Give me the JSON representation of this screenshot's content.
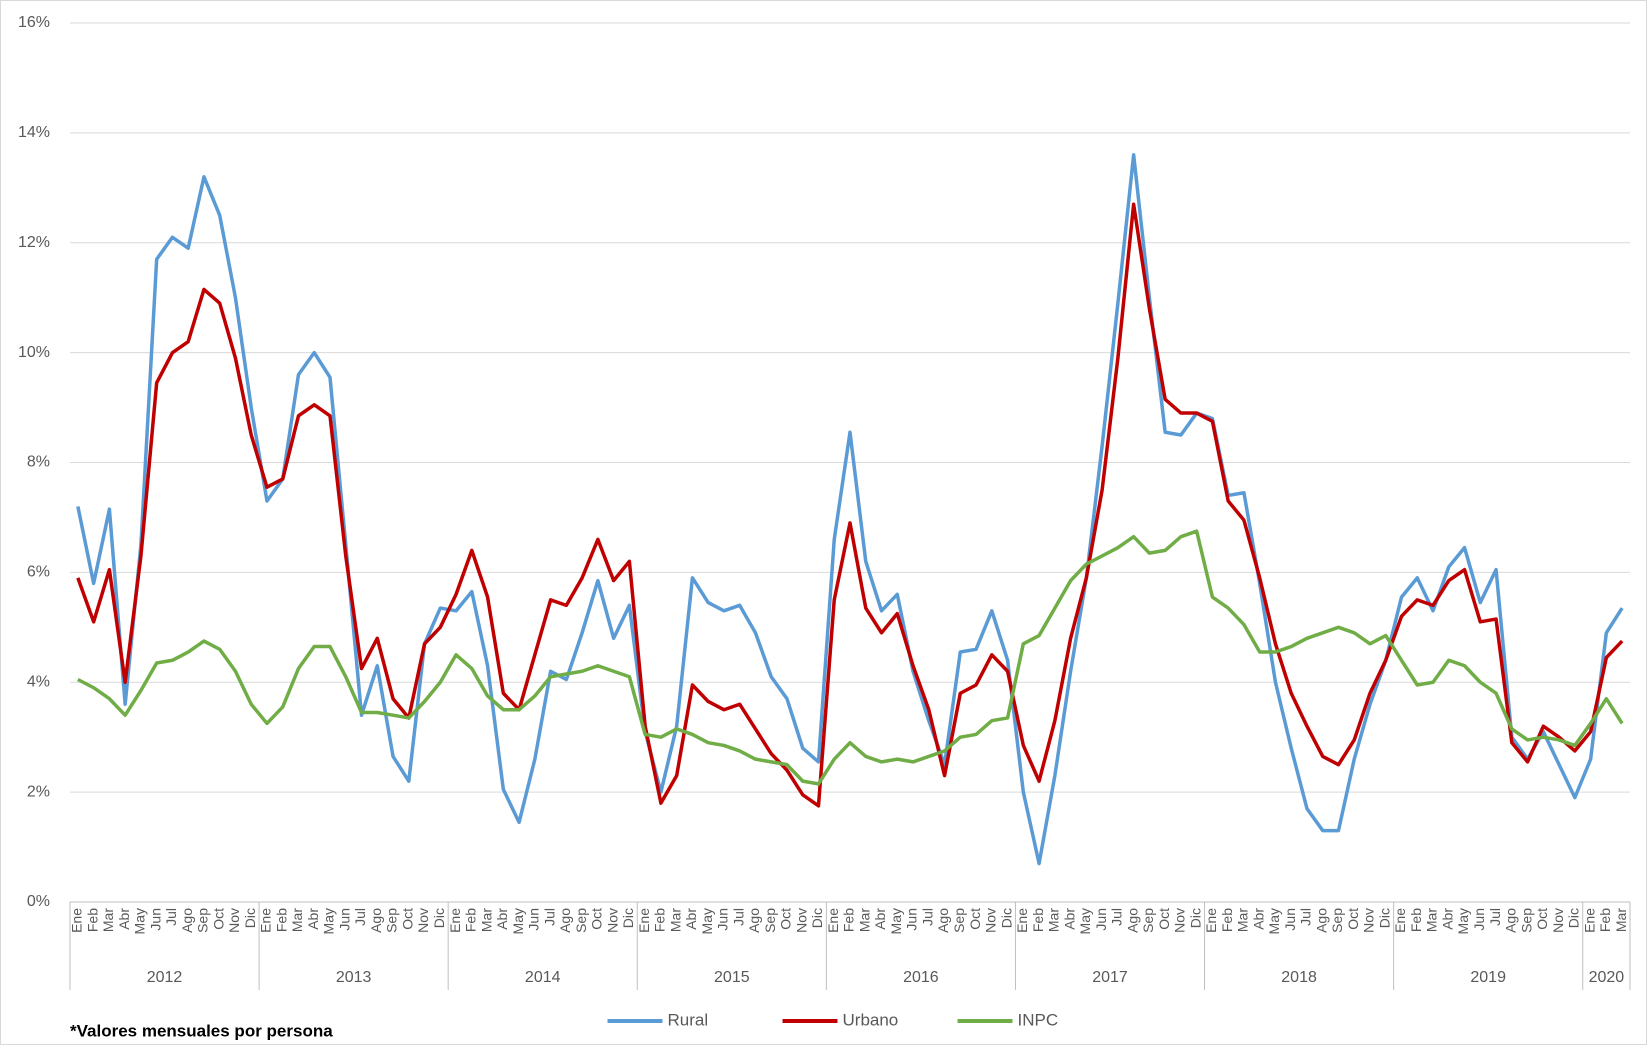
{
  "chart_data": {
    "type": "line",
    "categories": [
      "Ene",
      "Feb",
      "Mar",
      "Abr",
      "May",
      "Jun",
      "Jul",
      "Ago",
      "Sep",
      "Oct",
      "Nov",
      "Dic",
      "Ene",
      "Feb",
      "Mar",
      "Abr",
      "May",
      "Jun",
      "Jul",
      "Ago",
      "Sep",
      "Oct",
      "Nov",
      "Dic",
      "Ene",
      "Feb",
      "Mar",
      "Abr",
      "May",
      "Jun",
      "Jul",
      "Ago",
      "Sep",
      "Oct",
      "Nov",
      "Dic",
      "Ene",
      "Feb",
      "Mar",
      "Abr",
      "May",
      "Jun",
      "Jul",
      "Ago",
      "Sep",
      "Oct",
      "Nov",
      "Dic",
      "Ene",
      "Feb",
      "Mar",
      "Abr",
      "May",
      "Jun",
      "Jul",
      "Ago",
      "Sep",
      "Oct",
      "Nov",
      "Dic",
      "Ene",
      "Feb",
      "Mar",
      "Abr",
      "May",
      "Jun",
      "Jul",
      "Ago",
      "Sep",
      "Oct",
      "Nov",
      "Dic",
      "Ene",
      "Feb",
      "Mar",
      "Abr",
      "May",
      "Jun",
      "Jul",
      "Ago",
      "Sep",
      "Oct",
      "Nov",
      "Dic",
      "Ene",
      "Feb",
      "Mar",
      "Abr",
      "May",
      "Jun",
      "Jul",
      "Ago",
      "Sep",
      "Oct",
      "Nov",
      "Dic",
      "Ene",
      "Feb",
      "Mar"
    ],
    "x_groups": [
      "2012",
      "2013",
      "2014",
      "2015",
      "2016",
      "2017",
      "2018",
      "2019",
      "2020"
    ],
    "series": [
      {
        "name": "Rural",
        "color": "#5b9bd5",
        "values": [
          7.2,
          5.8,
          7.15,
          3.6,
          6.5,
          11.7,
          12.1,
          11.9,
          13.2,
          12.5,
          11.0,
          9.0,
          7.3,
          7.7,
          9.6,
          10.0,
          9.55,
          6.5,
          3.4,
          4.3,
          2.65,
          2.2,
          4.7,
          5.35,
          5.3,
          5.65,
          4.3,
          2.05,
          1.45,
          2.6,
          4.2,
          4.05,
          4.9,
          5.85,
          4.8,
          5.4,
          3.1,
          2.0,
          3.2,
          5.9,
          5.45,
          5.3,
          5.4,
          4.9,
          4.1,
          3.7,
          2.8,
          2.55,
          6.6,
          8.55,
          6.2,
          5.3,
          5.6,
          4.2,
          3.3,
          2.5,
          4.55,
          4.6,
          5.3,
          4.4,
          2.0,
          0.7,
          2.3,
          4.2,
          5.9,
          8.3,
          10.9,
          13.6,
          11.0,
          8.55,
          8.5,
          8.9,
          8.8,
          7.4,
          7.45,
          5.8,
          4.0,
          2.8,
          1.7,
          1.3,
          1.3,
          2.6,
          3.6,
          4.4,
          5.55,
          5.9,
          5.3,
          6.1,
          6.45,
          5.45,
          6.05,
          3.0,
          2.6,
          3.1,
          2.5,
          1.9,
          2.6,
          4.9,
          5.35
        ]
      },
      {
        "name": "Urbano",
        "color": "#c00000",
        "values": [
          5.9,
          5.1,
          6.05,
          4.0,
          6.3,
          9.45,
          10.0,
          10.2,
          11.15,
          10.9,
          9.9,
          8.5,
          7.55,
          7.7,
          8.85,
          9.05,
          8.85,
          6.3,
          4.25,
          4.8,
          3.7,
          3.35,
          4.7,
          5.0,
          5.6,
          6.4,
          5.55,
          3.8,
          3.5,
          4.5,
          5.5,
          5.4,
          5.9,
          6.6,
          5.85,
          6.2,
          3.2,
          1.8,
          2.3,
          3.95,
          3.65,
          3.5,
          3.6,
          3.15,
          2.7,
          2.4,
          1.95,
          1.75,
          5.5,
          6.9,
          5.35,
          4.9,
          5.25,
          4.3,
          3.5,
          2.3,
          3.8,
          3.95,
          4.5,
          4.2,
          2.85,
          2.2,
          3.3,
          4.8,
          5.9,
          7.5,
          9.9,
          12.7,
          10.8,
          9.15,
          8.9,
          8.9,
          8.75,
          7.3,
          6.95,
          5.9,
          4.7,
          3.8,
          3.2,
          2.65,
          2.5,
          2.95,
          3.8,
          4.4,
          5.2,
          5.5,
          5.4,
          5.85,
          6.05,
          5.1,
          5.15,
          2.9,
          2.55,
          3.2,
          3.0,
          2.75,
          3.1,
          4.45,
          4.75
        ]
      },
      {
        "name": "INPC",
        "color": "#70ad47",
        "values": [
          4.05,
          3.9,
          3.7,
          3.4,
          3.85,
          4.35,
          4.4,
          4.55,
          4.75,
          4.6,
          4.2,
          3.6,
          3.25,
          3.55,
          4.25,
          4.65,
          4.65,
          4.1,
          3.45,
          3.45,
          3.4,
          3.35,
          3.65,
          4.0,
          4.5,
          4.25,
          3.75,
          3.5,
          3.5,
          3.75,
          4.1,
          4.15,
          4.2,
          4.3,
          4.2,
          4.1,
          3.05,
          3.0,
          3.15,
          3.05,
          2.9,
          2.85,
          2.75,
          2.6,
          2.55,
          2.5,
          2.2,
          2.15,
          2.6,
          2.9,
          2.65,
          2.55,
          2.6,
          2.55,
          2.65,
          2.75,
          3.0,
          3.05,
          3.3,
          3.35,
          4.7,
          4.85,
          5.35,
          5.85,
          6.15,
          6.3,
          6.45,
          6.65,
          6.35,
          6.4,
          6.65,
          6.75,
          5.55,
          5.35,
          5.05,
          4.55,
          4.55,
          4.65,
          4.8,
          4.9,
          5.0,
          4.9,
          4.7,
          4.85,
          4.4,
          3.95,
          4.0,
          4.4,
          4.3,
          4.0,
          3.8,
          3.15,
          2.95,
          3.0,
          2.95,
          2.85,
          3.25,
          3.7,
          3.25
        ]
      }
    ],
    "ylim": [
      0,
      16
    ],
    "yticks": [
      {
        "value": 0,
        "label": "0%"
      },
      {
        "value": 2,
        "label": "2%"
      },
      {
        "value": 4,
        "label": "4%"
      },
      {
        "value": 6,
        "label": "6%"
      },
      {
        "value": 8,
        "label": "8%"
      },
      {
        "value": 10,
        "label": "10%"
      },
      {
        "value": 12,
        "label": "12%"
      },
      {
        "value": 14,
        "label": "14%"
      },
      {
        "value": 16,
        "label": "16%"
      }
    ],
    "grid": true,
    "legend": "bottom",
    "footnote": "*Valores mensuales por persona"
  }
}
